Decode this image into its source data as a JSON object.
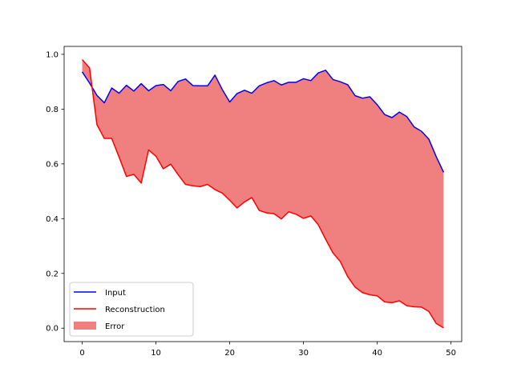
{
  "chart_data": {
    "type": "line",
    "title": "",
    "xlabel": "",
    "ylabel": "",
    "xlim": [
      -2.45,
      51.45
    ],
    "ylim": [
      -0.049,
      1.029
    ],
    "x_ticks": [
      0,
      10,
      20,
      30,
      40,
      50
    ],
    "y_ticks": [
      0.0,
      0.2,
      0.4,
      0.6,
      0.8,
      1.0
    ],
    "x_tick_labels": [
      "0",
      "10",
      "20",
      "30",
      "40",
      "50"
    ],
    "y_tick_labels": [
      "0.0",
      "0.2",
      "0.4",
      "0.6",
      "0.8",
      "1.0"
    ],
    "grid": false,
    "legend_position": "lower-left",
    "x": [
      0,
      1,
      2,
      3,
      4,
      5,
      6,
      7,
      8,
      9,
      10,
      11,
      12,
      13,
      14,
      15,
      16,
      17,
      18,
      19,
      20,
      21,
      22,
      23,
      24,
      25,
      26,
      27,
      28,
      29,
      30,
      31,
      32,
      33,
      34,
      35,
      36,
      37,
      38,
      39,
      40,
      41,
      42,
      43,
      44,
      45,
      46,
      47,
      48,
      49
    ],
    "series": [
      {
        "name": "Input",
        "color": "#0000ff",
        "values": [
          0.936,
          0.895,
          0.85,
          0.823,
          0.877,
          0.858,
          0.887,
          0.866,
          0.893,
          0.867,
          0.886,
          0.89,
          0.867,
          0.901,
          0.91,
          0.886,
          0.885,
          0.885,
          0.924,
          0.871,
          0.826,
          0.857,
          0.869,
          0.858,
          0.885,
          0.896,
          0.904,
          0.888,
          0.898,
          0.898,
          0.911,
          0.904,
          0.932,
          0.942,
          0.908,
          0.9,
          0.889,
          0.849,
          0.84,
          0.845,
          0.816,
          0.78,
          0.769,
          0.789,
          0.773,
          0.735,
          0.719,
          0.69,
          0.626,
          0.569
        ]
      },
      {
        "name": "Reconstruction",
        "color": "#ff0000",
        "values": [
          0.981,
          0.95,
          0.743,
          0.693,
          0.693,
          0.625,
          0.554,
          0.562,
          0.53,
          0.651,
          0.628,
          0.582,
          0.599,
          0.561,
          0.525,
          0.52,
          0.517,
          0.525,
          0.506,
          0.493,
          0.467,
          0.439,
          0.461,
          0.477,
          0.43,
          0.421,
          0.418,
          0.399,
          0.425,
          0.416,
          0.401,
          0.41,
          0.378,
          0.325,
          0.275,
          0.243,
          0.188,
          0.15,
          0.13,
          0.122,
          0.118,
          0.096,
          0.093,
          0.1,
          0.082,
          0.078,
          0.077,
          0.061,
          0.017,
          0.001
        ]
      }
    ],
    "fill_between": {
      "name": "Error",
      "color": "#f08080",
      "between": [
        "Input",
        "Reconstruction"
      ]
    }
  }
}
